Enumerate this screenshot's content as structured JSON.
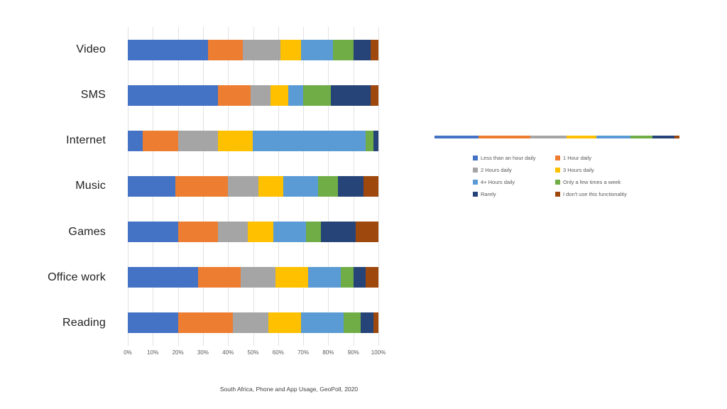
{
  "caption": "South Africa, Phone and App Usage, GeoPoll, 2020",
  "colors": {
    "background": "#ffffff",
    "gridline": "#e2e2e2",
    "axis_text": "#595959",
    "category_text": "#1f1f1f",
    "legend_text": "#595959"
  },
  "chart_data": {
    "type": "bar",
    "orientation": "horizontal",
    "stacked": true,
    "title": "",
    "xlabel": "",
    "ylabel": "",
    "xlim": [
      0,
      100
    ],
    "grid": true,
    "legend_position": "right",
    "x_ticks": [
      "0%",
      "10%",
      "20%",
      "30%",
      "40%",
      "50%",
      "60%",
      "70%",
      "80%",
      "90%",
      "100%"
    ],
    "categories": [
      "Video",
      "SMS",
      "Internet",
      "Music",
      "Games",
      "Office work",
      "Reading"
    ],
    "series": [
      {
        "name": "Less than an hour daily",
        "color": "#4472C4",
        "values": [
          32,
          36,
          6,
          19,
          20,
          28,
          20
        ]
      },
      {
        "name": "1 Hour daily",
        "color": "#ED7D31",
        "values": [
          14,
          13,
          14,
          21,
          16,
          17,
          22
        ]
      },
      {
        "name": "2 Hours daily",
        "color": "#A5A5A5",
        "values": [
          15,
          8,
          16,
          12,
          12,
          14,
          14
        ]
      },
      {
        "name": "3 Hours daily",
        "color": "#FFC000",
        "values": [
          8,
          7,
          14,
          10,
          10,
          13,
          13
        ]
      },
      {
        "name": "4+ Hours daily",
        "color": "#5B9BD5",
        "values": [
          13,
          6,
          45,
          14,
          13,
          13,
          17
        ]
      },
      {
        "name": "Only a few times a week",
        "color": "#70AD47",
        "values": [
          8,
          11,
          3,
          8,
          6,
          5,
          7
        ]
      },
      {
        "name": "Rarely",
        "color": "#264478",
        "values": [
          7,
          16,
          2,
          10,
          14,
          5,
          5
        ]
      },
      {
        "name": "I don't use this functionality",
        "color": "#9E480E",
        "values": [
          3,
          3,
          0,
          6,
          9,
          5,
          2
        ]
      }
    ]
  },
  "mini_bar": {
    "description": "thin collapsed stacked bar strip above the legend",
    "values": [
      18,
      21,
      15,
      12,
      14,
      9,
      9,
      2
    ]
  }
}
